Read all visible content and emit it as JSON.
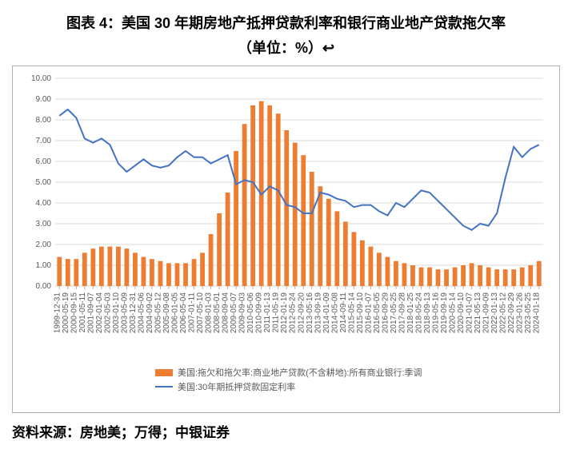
{
  "header": {
    "title_line1": "图表 4：美国 30 年期房地产抵押贷款利率和银行商业地产贷款拖欠率",
    "title_line2": "（单位：%）↩"
  },
  "source": "资料来源：房地美；万得；中银证券",
  "chart": {
    "type": "combo-bar-line",
    "background_color": "#ffffff",
    "border_color": "#b0b0b0",
    "grid_color": "#d9d9d9",
    "axis_text_color": "#595959",
    "axis_fontsize": 10,
    "ylim": [
      0,
      10
    ],
    "ytick_step": 1,
    "ytick_labels": [
      "0.00",
      "1.00",
      "2.00",
      "3.00",
      "4.00",
      "5.00",
      "6.00",
      "7.00",
      "8.00",
      "9.00",
      "10.00"
    ],
    "x_labels": [
      "1999-12-31",
      "2000-05-19",
      "2000-09-15",
      "2001-05-11",
      "2001-09-07",
      "2002-01-04",
      "2002-05-03",
      "2003-01-10",
      "2003-05-09",
      "2003-12-31",
      "2004-05-06",
      "2004-09-02",
      "2005-05-12",
      "2005-09-08",
      "2006-01-05",
      "2006-05-04",
      "2007-01-11",
      "2007-05-10",
      "2008-01-03",
      "2008-05-01",
      "2008-09-04",
      "2009-05-07",
      "2009-09-03",
      "2010-05-06",
      "2010-09-09",
      "2011-01-13",
      "2011-05-19",
      "2012-01-19",
      "2012-05-24",
      "2012-09-20",
      "2013-05-16",
      "2013-09-19",
      "2014-01-09",
      "2014-05-08",
      "2014-09-11",
      "2015-05-14",
      "2015-09-10",
      "2016-01-07",
      "2016-05-05",
      "2016-09-29",
      "2017-05-25",
      "2017-09-28",
      "2018-01-25",
      "2018-05-24",
      "2018-09-13",
      "2019-05-16",
      "2019-09-19",
      "2020-05-14",
      "2020-09-10",
      "2021-01-07",
      "2021-05-13",
      "2021-09-09",
      "2022-01-13",
      "2022-05-12",
      "2022-09-29",
      "2023-01-26",
      "2023-05-25",
      "2024-01-18"
    ],
    "bar_series": {
      "name": "美国:拖欠和拖欠率:商业地产贷款(不含耕地):所有商业银行:季调",
      "color": "#ed7d31",
      "values": [
        1.4,
        1.3,
        1.3,
        1.6,
        1.8,
        1.9,
        1.9,
        1.9,
        1.8,
        1.6,
        1.4,
        1.3,
        1.2,
        1.1,
        1.1,
        1.1,
        1.3,
        1.6,
        2.5,
        3.5,
        4.5,
        6.5,
        7.8,
        8.7,
        8.9,
        8.7,
        8.3,
        7.5,
        6.9,
        6.3,
        5.5,
        4.8,
        4.2,
        3.6,
        3.1,
        2.6,
        2.2,
        1.9,
        1.6,
        1.4,
        1.2,
        1.1,
        1.0,
        0.9,
        0.9,
        0.8,
        0.8,
        0.9,
        1.0,
        1.1,
        1.0,
        0.9,
        0.8,
        0.8,
        0.8,
        0.9,
        1.0,
        1.2
      ]
    },
    "line_series": {
      "name": "美国:30年期抵押贷款固定利率",
      "color": "#4472c4",
      "width": 2,
      "values": [
        8.2,
        8.5,
        8.1,
        7.1,
        6.9,
        7.1,
        6.8,
        5.9,
        5.5,
        5.8,
        6.1,
        5.8,
        5.7,
        5.8,
        6.2,
        6.5,
        6.2,
        6.2,
        5.9,
        6.1,
        6.3,
        4.9,
        5.1,
        5.0,
        4.4,
        4.8,
        4.6,
        3.9,
        3.8,
        3.5,
        3.5,
        4.5,
        4.4,
        4.2,
        4.1,
        3.8,
        3.9,
        3.9,
        3.6,
        3.4,
        4.0,
        3.8,
        4.2,
        4.6,
        4.5,
        4.1,
        3.7,
        3.3,
        2.9,
        2.7,
        3.0,
        2.9,
        3.5,
        5.2,
        6.7,
        6.2,
        6.6,
        6.8
      ]
    },
    "legend": {
      "position": "bottom",
      "bar_label": "美国:拖欠和拖欠率:商业地产贷款(不含耕地):所有商业银行:季调",
      "line_label": "美国:30年期抵押贷款固定利率"
    }
  }
}
